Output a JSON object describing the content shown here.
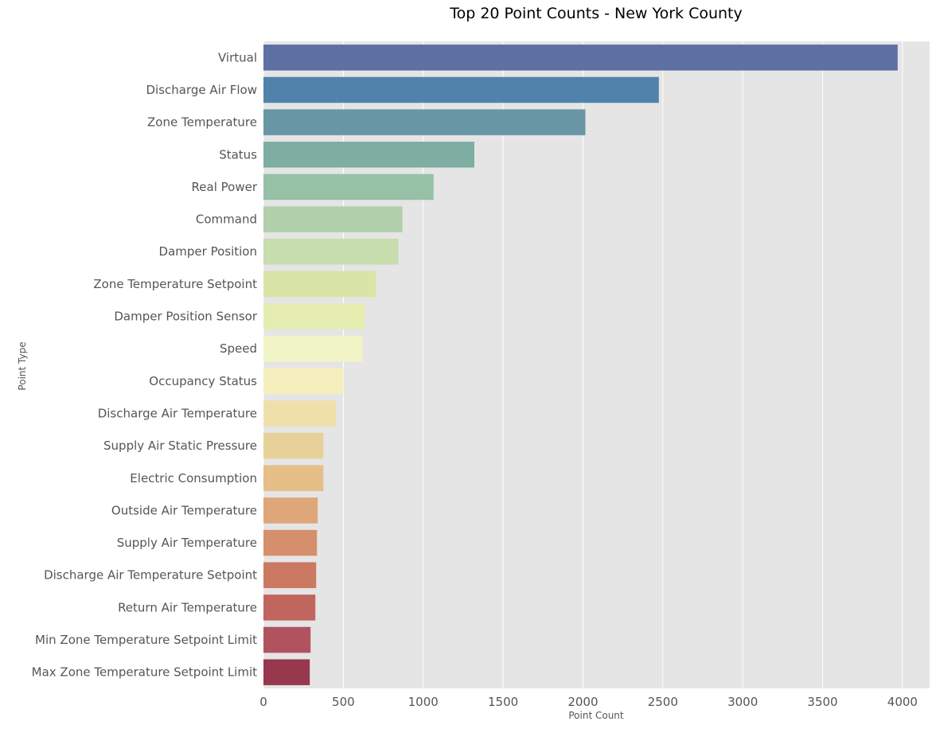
{
  "chart_data": {
    "type": "bar",
    "orientation": "horizontal",
    "title": "Top 20 Point Counts - New York County",
    "xlabel": "Point Count",
    "ylabel": "Point Type",
    "xlim": [
      0,
      4170
    ],
    "xticks": [
      0,
      500,
      1000,
      1500,
      2000,
      2500,
      3000,
      3500,
      4000
    ],
    "grid": true,
    "legend": "none",
    "categories": [
      "Virtual",
      "Discharge Air Flow",
      "Zone Temperature",
      "Status",
      "Real Power",
      "Command",
      "Damper Position",
      "Zone Temperature Setpoint",
      "Damper Position Sensor",
      "Speed",
      "Occupancy Status",
      "Discharge Air Temperature",
      "Supply Air Static Pressure",
      "Electric Consumption",
      "Outside Air Temperature",
      "Supply Air Temperature",
      "Discharge Air Temperature Setpoint",
      "Return Air Temperature",
      "Min Zone Temperature Setpoint Limit",
      "Max Zone Temperature Setpoint Limit"
    ],
    "values": [
      3970,
      2475,
      2015,
      1320,
      1065,
      870,
      845,
      705,
      635,
      620,
      500,
      455,
      375,
      375,
      340,
      335,
      330,
      325,
      295,
      290
    ],
    "colors": [
      "#5e6fa2",
      "#5182ab",
      "#6896a5",
      "#7eaea1",
      "#96c1a7",
      "#b2cfac",
      "#c7ddad",
      "#d9e5a6",
      "#e5edb1",
      "#f1f4c5",
      "#f4efbd",
      "#efe0aa",
      "#e8d199",
      "#e5be88",
      "#dea77a",
      "#d58f6c",
      "#cb7962",
      "#c0665f",
      "#b0535f",
      "#98384e"
    ],
    "background": "#e5e5e5",
    "grid_color": "#ffffff"
  }
}
